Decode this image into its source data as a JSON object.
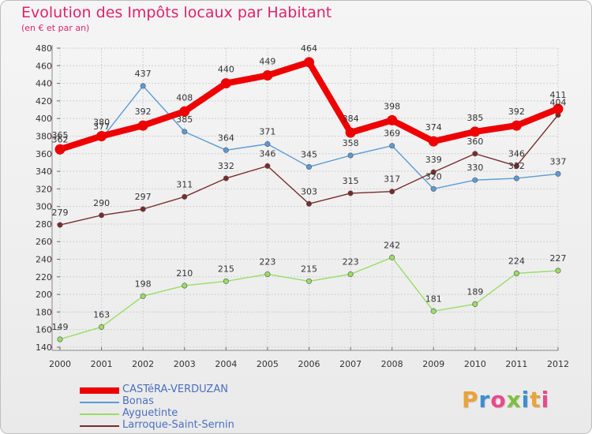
{
  "title": "Evolution des Impôts locaux par Habitant",
  "subtitle": "(en € et par an)",
  "logo": {
    "text": "Proxiti",
    "letter_colors": [
      "#e8a33a",
      "#3a8fd0",
      "#e84a8a",
      "#7fbf3f",
      "#3a8fd0",
      "#e8a33a",
      "#e84a8a"
    ]
  },
  "chart_data": {
    "type": "line",
    "x": [
      "2000",
      "2001",
      "2002",
      "2003",
      "2004",
      "2005",
      "2006",
      "2007",
      "2008",
      "2009",
      "2010",
      "2011",
      "2012"
    ],
    "ylim": [
      140,
      480
    ],
    "yticks": [
      140,
      160,
      180,
      200,
      220,
      240,
      260,
      280,
      300,
      320,
      340,
      360,
      380,
      400,
      420,
      440,
      460,
      480
    ],
    "grid": true,
    "legend_position": "bottom-left",
    "series": [
      {
        "name": "CASTéRA-VERDUZAN",
        "color": "#ee0000",
        "emphasis": true,
        "values": [
          365,
          380,
          392,
          408,
          440,
          449,
          464,
          384,
          398,
          374,
          385,
          392,
          411
        ]
      },
      {
        "name": "Bonas",
        "color": "#5b9bd5",
        "values": [
          362,
          377,
          437,
          385,
          364,
          371,
          345,
          358,
          369,
          320,
          330,
          332,
          337
        ]
      },
      {
        "name": "Ayguetinte",
        "color": "#99dd66",
        "values": [
          149,
          163,
          198,
          210,
          215,
          223,
          215,
          223,
          242,
          181,
          189,
          224,
          227
        ]
      },
      {
        "name": "Larroque-Saint-Sernin",
        "color": "#7a2b2b",
        "values": [
          279,
          290,
          297,
          311,
          332,
          346,
          303,
          315,
          317,
          339,
          360,
          346,
          404
        ]
      }
    ]
  }
}
